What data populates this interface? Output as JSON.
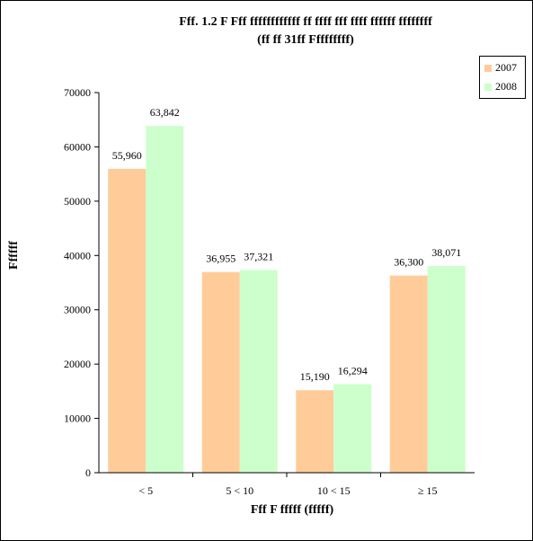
{
  "title": {
    "line1": "Fff. 1.2 F Fff ffffffffffff ff ffff fff ffff ffffff ffffffff",
    "line2": "(ff ff 31ff  Fffffffff)"
  },
  "chart_data": {
    "type": "bar",
    "categories": [
      "<  5",
      "5 < 10",
      "10 < 15",
      "≥ 15"
    ],
    "series": [
      {
        "name": "2007",
        "values": [
          55960,
          36955,
          15190,
          36300
        ],
        "labels": [
          "55,960",
          "36,955",
          "15,190",
          "36,300"
        ],
        "color": "#ffcc99"
      },
      {
        "name": "2008",
        "values": [
          63842,
          37321,
          16294,
          38071
        ],
        "labels": [
          "63,842",
          "37,321",
          "16,294",
          "38,071"
        ],
        "color": "#ccffcc"
      }
    ],
    "xlabel": "Fff F fffff (fffff)",
    "ylabel": "Ffffff",
    "ylim": [
      0,
      70000
    ],
    "yticks": [
      0,
      10000,
      20000,
      30000,
      40000,
      50000,
      60000,
      70000
    ],
    "grid": false,
    "legend_position": "right"
  }
}
